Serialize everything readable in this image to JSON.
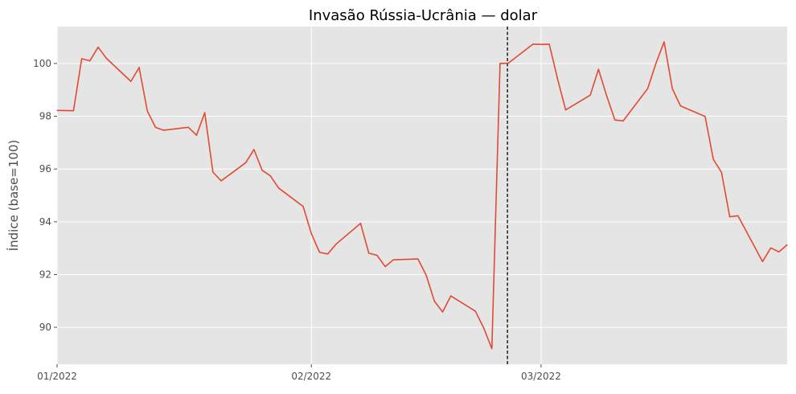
{
  "chart_data": {
    "type": "line",
    "title": "Invasão Rússia-Ucrânia — dolar",
    "xlabel": "",
    "ylabel": "Índice (base=100)",
    "ylim": [
      88.6,
      101.4
    ],
    "yticks": [
      90,
      92,
      94,
      96,
      98,
      100
    ],
    "x_ticks": [
      {
        "label": "01/2022",
        "day": 0
      },
      {
        "label": "02/2022",
        "day": 31
      },
      {
        "label": "03/2022",
        "day": 59
      }
    ],
    "xlim": [
      0,
      89
    ],
    "grid": true,
    "event_line": {
      "day": 54.9,
      "style": "dashed",
      "color": "#000000"
    },
    "series": [
      {
        "color": "#e24a33",
        "points": [
          [
            0,
            98.22
          ],
          [
            2,
            98.21
          ],
          [
            3,
            100.18
          ],
          [
            4,
            100.1
          ],
          [
            5,
            100.62
          ],
          [
            6,
            100.2
          ],
          [
            9,
            99.32
          ],
          [
            10,
            99.85
          ],
          [
            11,
            98.2
          ],
          [
            12,
            97.58
          ],
          [
            13,
            97.47
          ],
          [
            16,
            97.58
          ],
          [
            17,
            97.28
          ],
          [
            18,
            98.14
          ],
          [
            19,
            95.88
          ],
          [
            20,
            95.55
          ],
          [
            23,
            96.24
          ],
          [
            24,
            96.74
          ],
          [
            25,
            95.95
          ],
          [
            26,
            95.74
          ],
          [
            27,
            95.28
          ],
          [
            30,
            94.58
          ],
          [
            31,
            93.55
          ],
          [
            32,
            92.84
          ],
          [
            33,
            92.78
          ],
          [
            34,
            93.15
          ],
          [
            37,
            93.94
          ],
          [
            38,
            92.81
          ],
          [
            39,
            92.73
          ],
          [
            40,
            92.3
          ],
          [
            41,
            92.56
          ],
          [
            44,
            92.59
          ],
          [
            45,
            91.97
          ],
          [
            46,
            90.99
          ],
          [
            47,
            90.58
          ],
          [
            48,
            91.19
          ],
          [
            51,
            90.61
          ],
          [
            52,
            89.98
          ],
          [
            53,
            89.19
          ],
          [
            54,
            100.0
          ],
          [
            55,
            100.01
          ],
          [
            58,
            100.73
          ],
          [
            59,
            100.72
          ],
          [
            60,
            100.73
          ],
          [
            61,
            99.43
          ],
          [
            62,
            98.24
          ],
          [
            65,
            98.8
          ],
          [
            66,
            99.78
          ],
          [
            67,
            98.77
          ],
          [
            68,
            97.86
          ],
          [
            69,
            97.82
          ],
          [
            72,
            99.05
          ],
          [
            73,
            100.0
          ],
          [
            74,
            100.82
          ],
          [
            75,
            99.05
          ],
          [
            76,
            98.39
          ],
          [
            79,
            97.99
          ],
          [
            80,
            96.37
          ],
          [
            81,
            95.87
          ],
          [
            82,
            94.19
          ],
          [
            83,
            94.23
          ],
          [
            86,
            92.49
          ],
          [
            87,
            93.01
          ],
          [
            88,
            92.86
          ],
          [
            89,
            93.13
          ]
        ]
      }
    ]
  }
}
